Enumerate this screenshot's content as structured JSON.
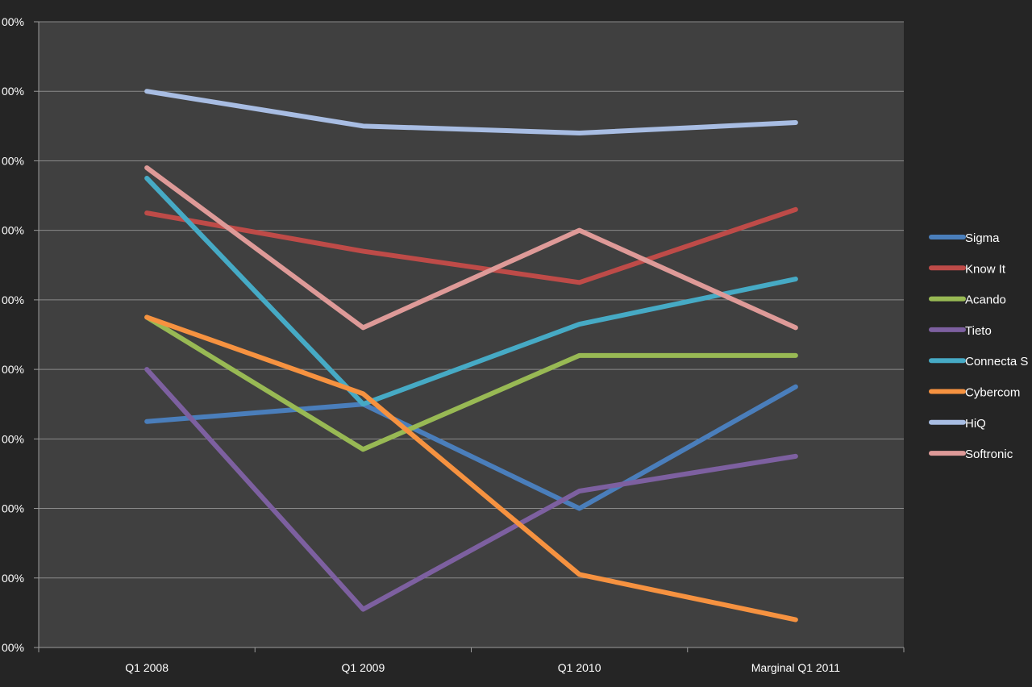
{
  "chart_data": {
    "type": "line",
    "title": "",
    "xlabel": "",
    "ylabel": "",
    "categories": [
      "Q1 2008",
      "Q1 2009",
      "Q1 2010",
      "Marginal Q1 2011"
    ],
    "y_tick_labels": [
      "00%",
      "00%",
      "00%",
      "00%",
      "00%",
      "00%",
      "00%",
      "00%",
      "00%",
      "00%"
    ],
    "ylim": [
      0,
      9
    ],
    "grid": true,
    "legend_position": "right",
    "series": [
      {
        "name": "Sigma",
        "color": "#4a7ebb",
        "values": [
          3.25,
          3.5,
          2.0,
          3.75
        ]
      },
      {
        "name": "Know It",
        "color": "#be4b48",
        "values": [
          6.25,
          5.7,
          5.25,
          6.3
        ]
      },
      {
        "name": "Acando",
        "color": "#98b954",
        "values": [
          4.75,
          2.85,
          4.2,
          4.2
        ]
      },
      {
        "name": "Tieto",
        "color": "#7d60a0",
        "values": [
          4.0,
          0.55,
          2.25,
          2.75
        ]
      },
      {
        "name": "Connecta S",
        "color": "#46aac5",
        "values": [
          6.75,
          3.5,
          4.65,
          5.3
        ]
      },
      {
        "name": "Cybercom",
        "color": "#f69240",
        "values": [
          4.75,
          3.65,
          1.05,
          0.4
        ]
      },
      {
        "name": "HiQ",
        "color": "#a8bde3",
        "values": [
          8.0,
          7.5,
          7.4,
          7.55
        ]
      },
      {
        "name": "Softronic",
        "color": "#de9a98",
        "values": [
          6.9,
          4.6,
          6.0,
          4.6
        ]
      }
    ]
  }
}
